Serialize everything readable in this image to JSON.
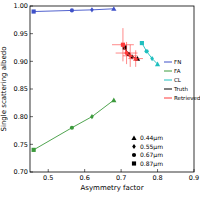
{
  "chart_data": {
    "type": "scatter",
    "x_label": "Asymmetry factor",
    "y_label": "Single scattering albedo",
    "xlim": [
      0.45,
      0.9
    ],
    "ylim": [
      0.7,
      1.0
    ],
    "xticks": [
      0.5,
      0.6,
      0.7,
      0.8,
      0.9
    ],
    "yticks": [
      {
        "value": 0.7,
        "label": "0.70"
      },
      0.75,
      {
        "value": 0.8,
        "label": "0.80"
      },
      0.85,
      {
        "value": 0.9,
        "label": "0.90"
      },
      0.95,
      {
        "value": 1.0,
        "label": "1.00"
      }
    ],
    "wavelengths": [
      {
        "label": "0.44µm",
        "marker": "triangle"
      },
      {
        "label": "0.55µm",
        "marker": "diamond"
      },
      {
        "label": "0.67µm",
        "marker": "circle"
      },
      {
        "label": "0.87µm",
        "marker": "square"
      }
    ],
    "series": [
      {
        "name": "FN",
        "color": "#3f51c8",
        "x": [
          0.68,
          0.62,
          0.565,
          0.46
        ],
        "values": [
          0.995,
          0.993,
          0.992,
          0.99
        ]
      },
      {
        "name": "FA",
        "color": "#3c9a3c",
        "x": [
          0.68,
          0.62,
          0.565,
          0.46
        ],
        "values": [
          0.83,
          0.8,
          0.78,
          0.74
        ]
      },
      {
        "name": "CL",
        "color": "#1fbfbf",
        "x": [
          0.8,
          0.785,
          0.77,
          0.757
        ],
        "values": [
          0.895,
          0.905,
          0.918,
          0.933
        ]
      },
      {
        "name": "Truth",
        "color": "#000000",
        "x": [
          0.745,
          0.73,
          0.72,
          0.71
        ],
        "values": [
          0.905,
          0.908,
          0.913,
          0.925
        ]
      },
      {
        "name": "Retrieved",
        "color": "#ff3b3b",
        "x": [
          0.74,
          0.725,
          0.715,
          0.705
        ],
        "values": [
          0.905,
          0.91,
          0.915,
          0.93
        ],
        "x_error": [
          0.02,
          0.02,
          0.03,
          0.03
        ],
        "y_error": [
          0.015,
          0.02,
          0.02,
          0.03
        ]
      }
    ]
  }
}
